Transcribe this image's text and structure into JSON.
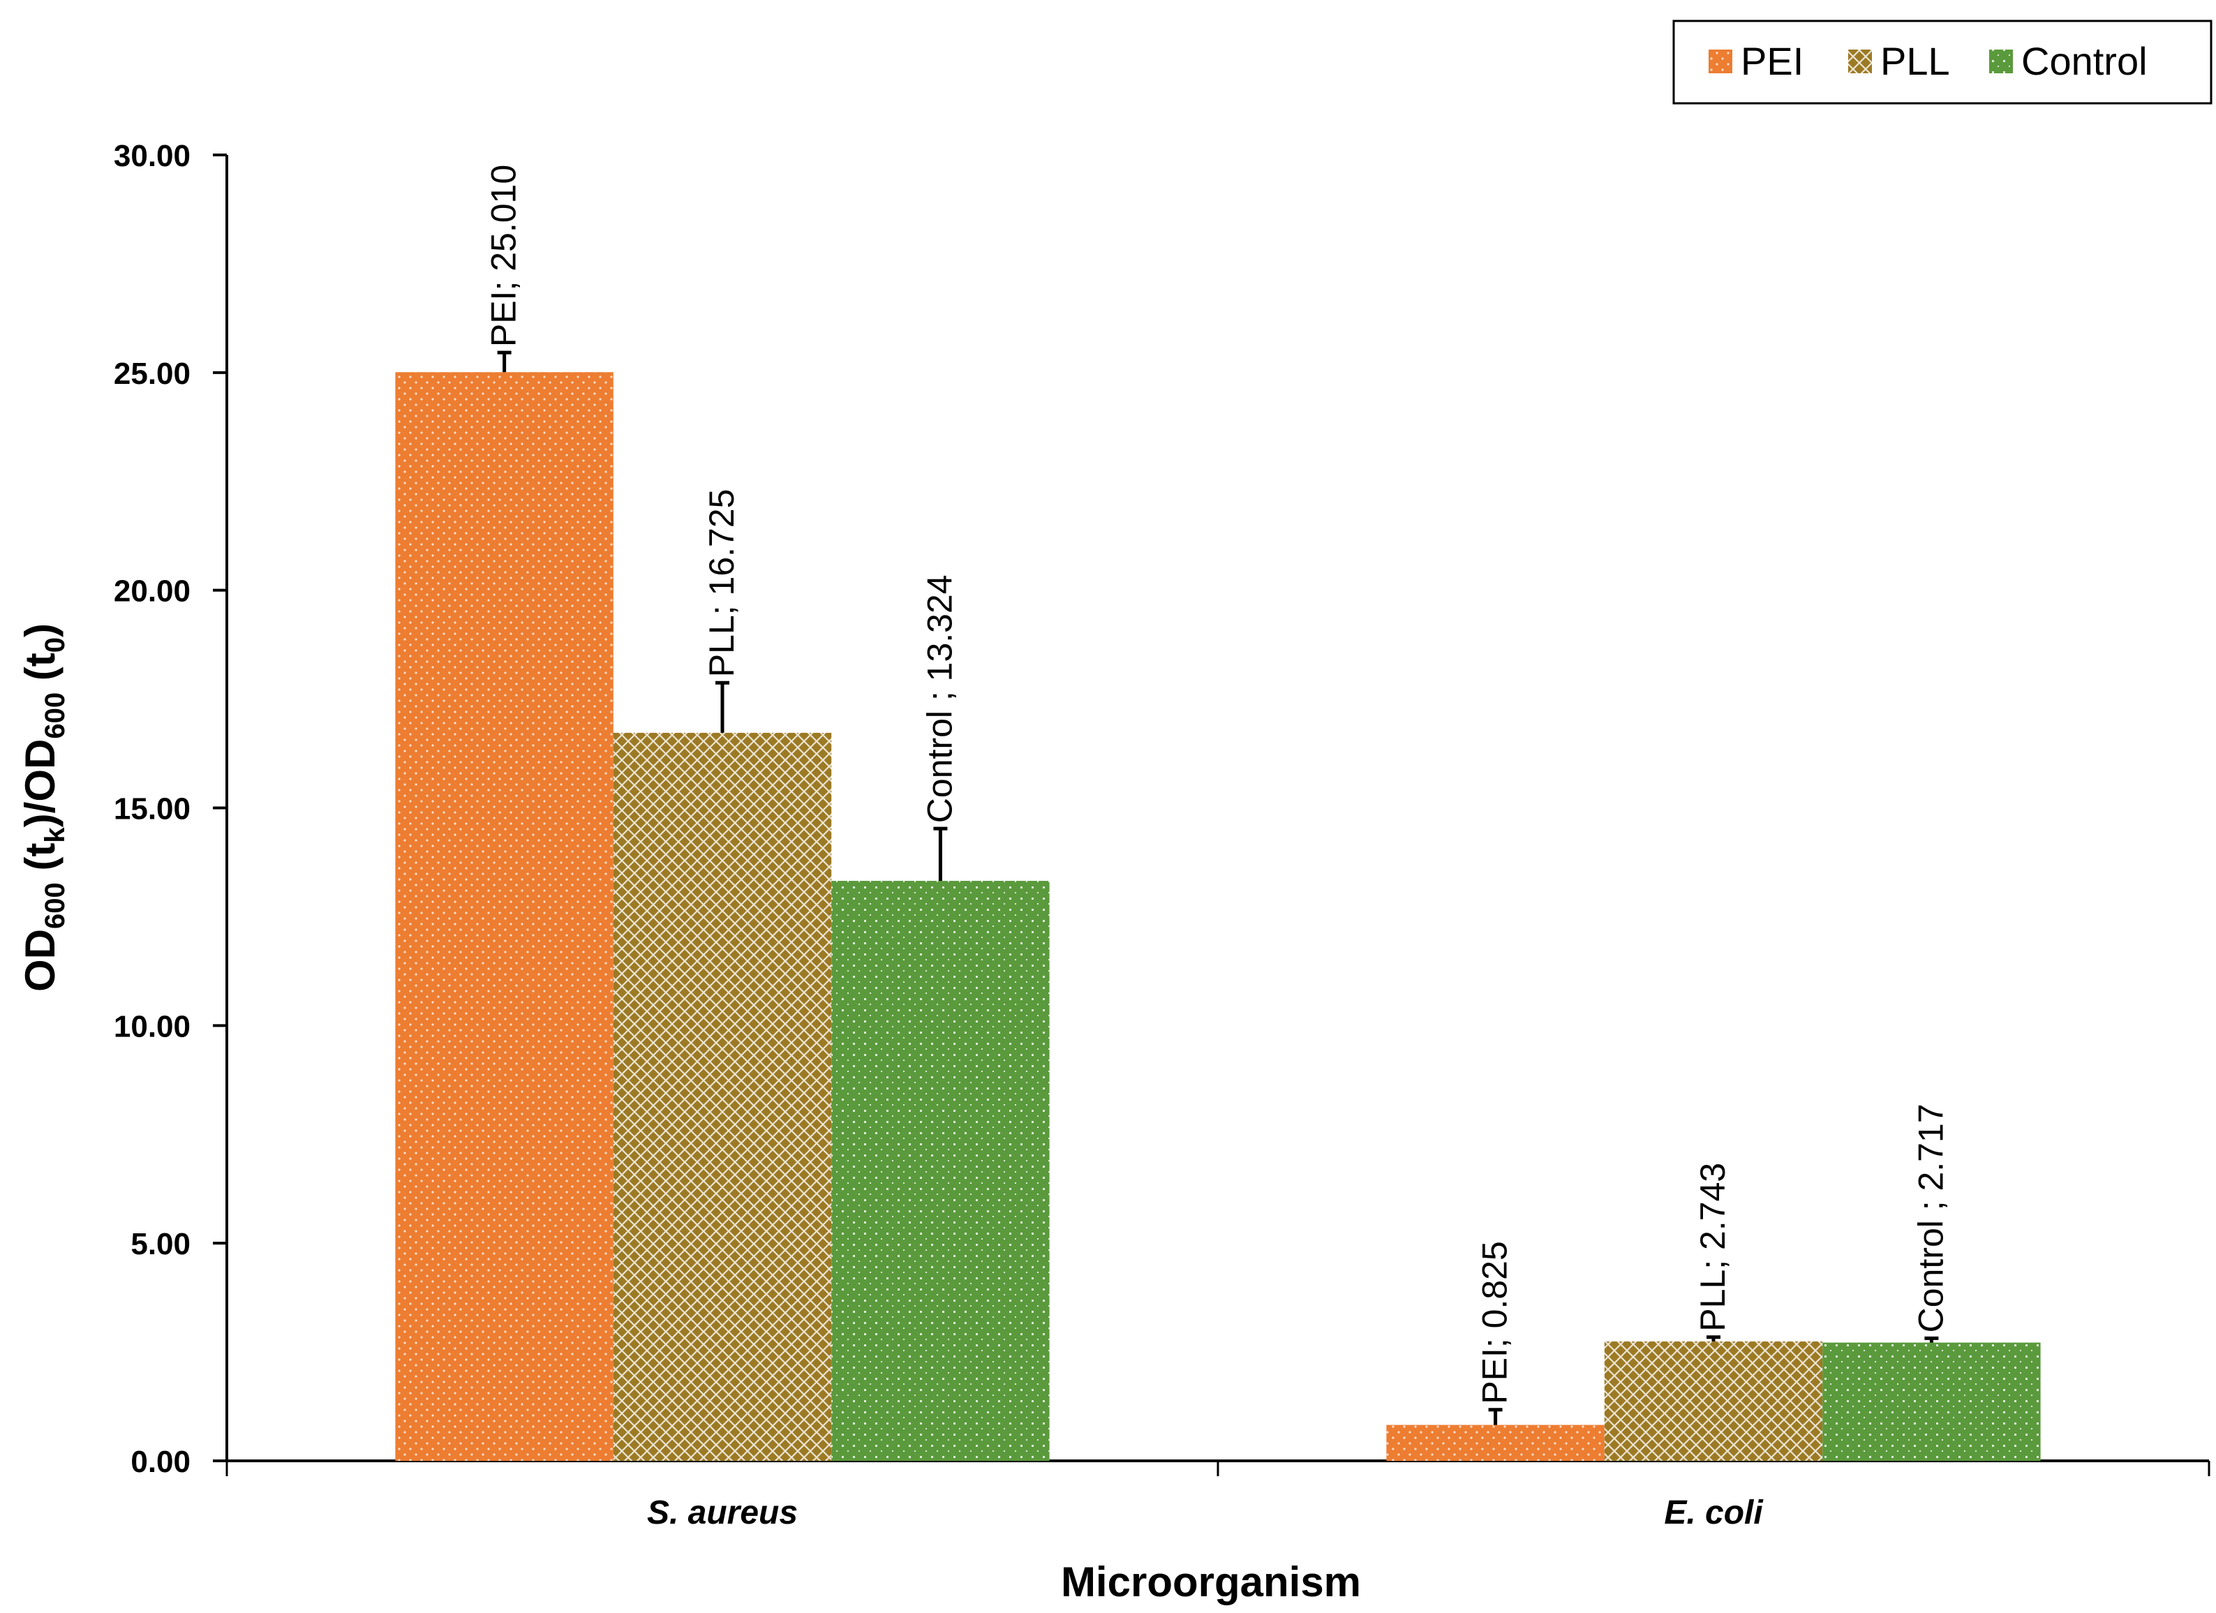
{
  "chart_data": {
    "type": "bar",
    "categories": [
      "S. aureus",
      "E. coli"
    ],
    "series": [
      {
        "name": "PEI",
        "color": "#ED7D31",
        "pattern": "dots",
        "values": [
          25.01,
          0.825
        ],
        "errors": [
          0.45,
          0.35
        ],
        "labels": [
          "PEI; 25.010",
          "PEI; 0.825"
        ]
      },
      {
        "name": "PLL",
        "color": "#9C7A24",
        "pattern": "crosshatch",
        "values": [
          16.725,
          2.743
        ],
        "errors": [
          1.15,
          0.1
        ],
        "labels": [
          "PLL; 16.725",
          "PLL; 2.743"
        ]
      },
      {
        "name": "Control",
        "color": "#5A9A3C",
        "pattern": "grid-dots",
        "values": [
          13.324,
          2.717
        ],
        "errors": [
          1.2,
          0.1
        ],
        "labels": [
          "Control ; 13.324",
          "Control ; 2.717"
        ]
      }
    ],
    "ylim": [
      0,
      30
    ],
    "yticks": [
      "0.00",
      "5.00",
      "10.00",
      "15.00",
      "20.00",
      "25.00",
      "30.00"
    ],
    "ytick_values": [
      0,
      5,
      10,
      15,
      20,
      25,
      30
    ],
    "xlabel": "Microorganism",
    "ylabel_parts": {
      "a": "OD",
      "a_sub": "600",
      "b": " (t",
      "b_sub": "k",
      "c": ")/OD",
      "c_sub": "600",
      "d": " (t",
      "d_sub": "0",
      "e": ")"
    },
    "legend_position": "top-right",
    "grid": false
  }
}
